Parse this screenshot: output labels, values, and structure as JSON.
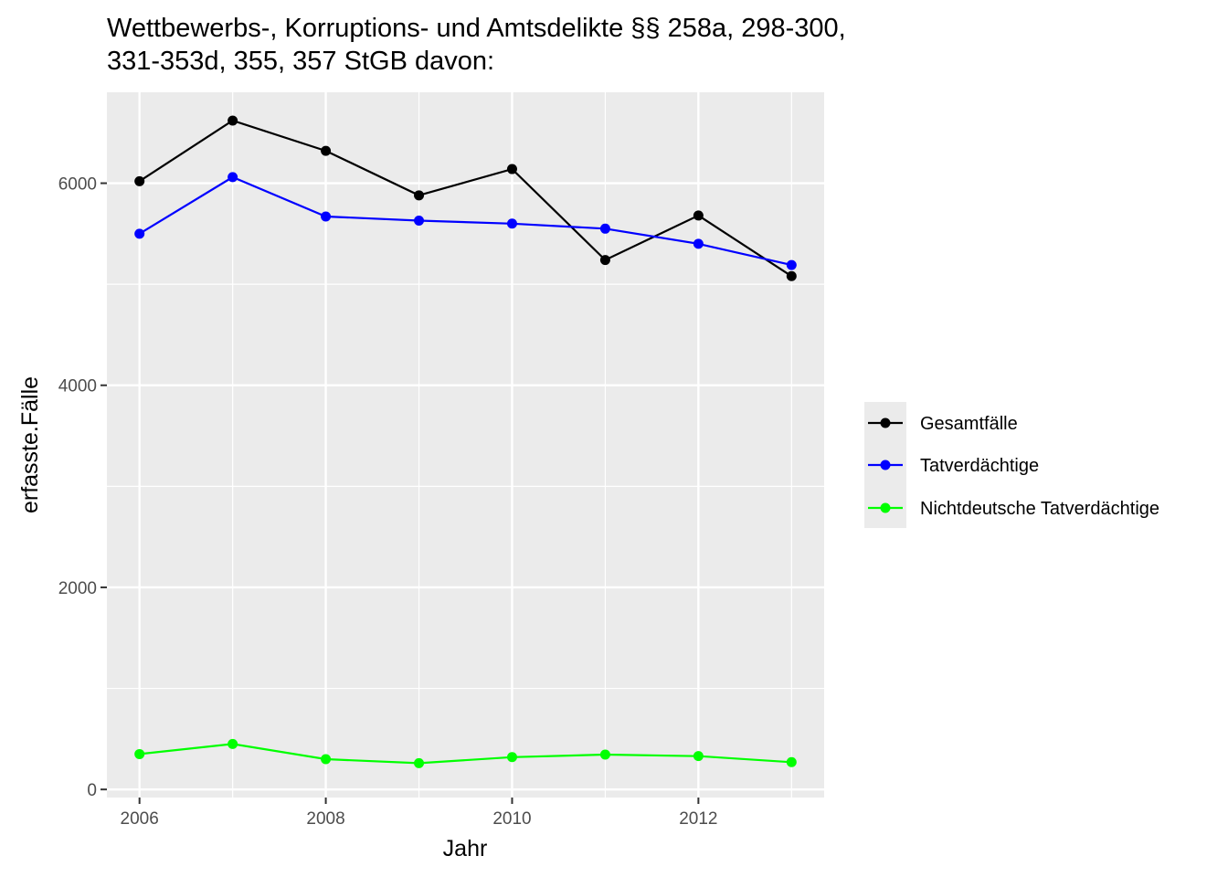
{
  "chart_data": {
    "type": "line",
    "title": "Wettbewerbs-, Korruptions- und Amtsdelikte §§ 258a, 298-300, 331-353d, 355, 357 StGB davon:",
    "title_lines": [
      "Wettbewerbs-, Korruptions- und Amtsdelikte §§ 258a, 298-300,",
      "331-353d, 355, 357 StGB davon:"
    ],
    "xlabel": "Jahr",
    "ylabel": "erfasste.Fälle",
    "x": [
      2006,
      2007,
      2008,
      2009,
      2010,
      2011,
      2012,
      2013
    ],
    "x_ticks": [
      "2006",
      "2008",
      "2010",
      "2012"
    ],
    "y_ticks": [
      "0",
      "2000",
      "4000",
      "6000"
    ],
    "xlim": [
      2005.65,
      2013.35
    ],
    "ylim": [
      -80,
      6900
    ],
    "grid": true,
    "legend_position": "right",
    "background": "#EBEBEB",
    "series": [
      {
        "name": "Gesamtfälle",
        "color": "#000000",
        "values": [
          6020,
          6620,
          6320,
          5880,
          6140,
          5240,
          5680,
          5080
        ]
      },
      {
        "name": "Tatverdächtige",
        "color": "#0000FF",
        "values": [
          5500,
          6060,
          5670,
          5630,
          5600,
          5550,
          5400,
          5190
        ]
      },
      {
        "name": "Nichtdeutsche Tatverdächtige",
        "color": "#00FF00",
        "values": [
          350,
          450,
          300,
          260,
          320,
          345,
          330,
          270
        ]
      }
    ]
  }
}
